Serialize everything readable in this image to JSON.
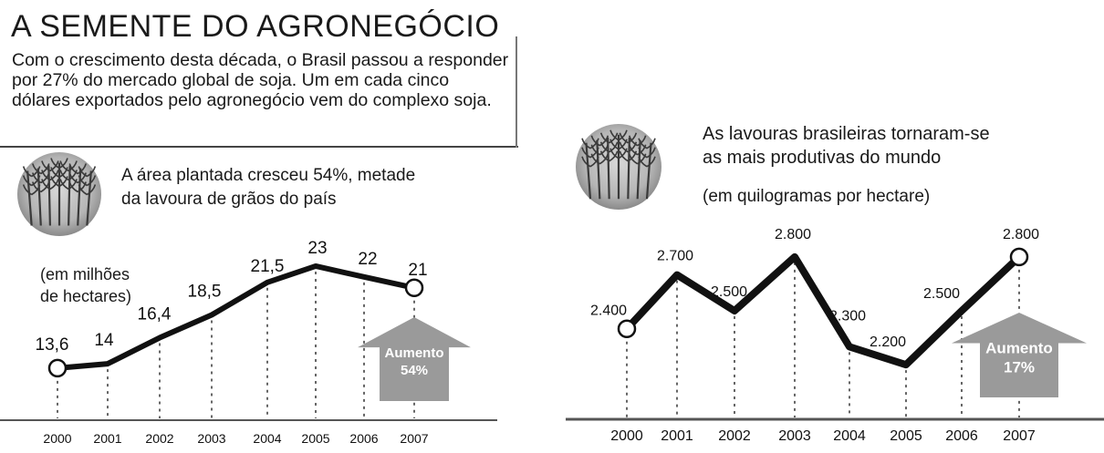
{
  "title": "A SEMENTE DO AGRONEGÓCIO",
  "intro": "Com o crescimento desta década, o Brasil passou a responder por 27% do mercado global de soja. Um em cada cinco dólares exportados pelo agronegócio vem do complexo soja.",
  "colors": {
    "line": "#111111",
    "arrow": "#9a9a9a",
    "dotted": "#666666"
  },
  "icons": [
    "soybean-plant-icon",
    "soybean-plant-icon"
  ],
  "chart_data": [
    {
      "type": "line",
      "caption_lines": [
        "A área plantada cresceu 54%, metade",
        "da lavoura de grãos do país"
      ],
      "unit_lines": [
        "(em milhões",
        "de hectares)"
      ],
      "x": [
        "2000",
        "2001",
        "2002",
        "2003",
        "2004",
        "2005",
        "2006",
        "2007"
      ],
      "values": [
        13.6,
        14,
        16.4,
        18.5,
        21.5,
        23,
        22,
        21
      ],
      "value_labels": [
        "13,6",
        "14",
        "16,4",
        "18,5",
        "21,5",
        "23",
        "22",
        "21"
      ],
      "ylim": [
        13,
        23.5
      ],
      "arrow_label": [
        "Aumento",
        "54%"
      ]
    },
    {
      "type": "line",
      "caption_lines": [
        "As lavouras brasileiras tornaram-se",
        "as mais produtivas do mundo"
      ],
      "unit_lines": [
        "(em quilogramas por hectare)"
      ],
      "x": [
        "2000",
        "2001",
        "2002",
        "2003",
        "2004",
        "2005",
        "2006",
        "2007"
      ],
      "values": [
        2400,
        2700,
        2500,
        2800,
        2300,
        2200,
        2500,
        2800
      ],
      "value_labels": [
        "2.400",
        "2.700",
        "2.500",
        "2.800",
        "2.300",
        "2.200",
        "2.500",
        "2.800"
      ],
      "ylim": [
        2150,
        2850
      ],
      "arrow_label": [
        "Aumento",
        "17%"
      ]
    }
  ]
}
